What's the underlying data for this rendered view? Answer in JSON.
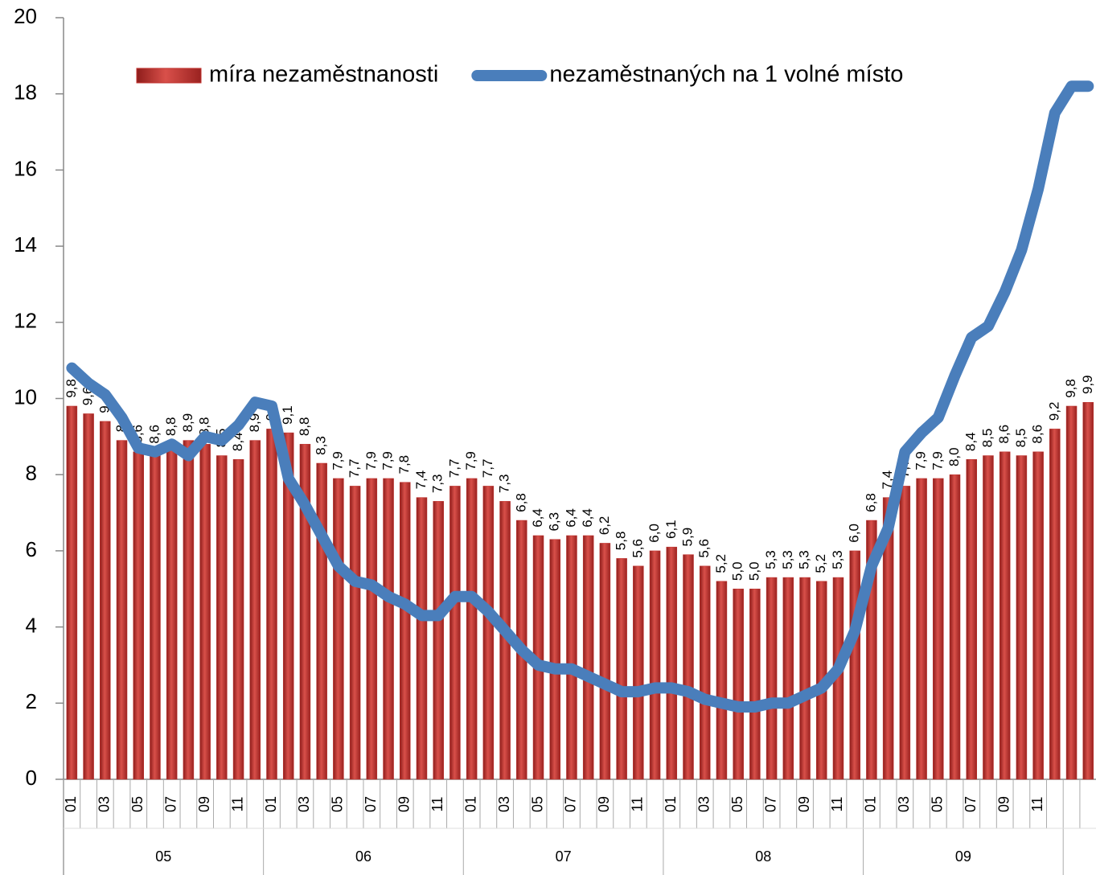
{
  "chart_data": {
    "type": "bar",
    "categories": [
      "01",
      null,
      "03",
      null,
      "05",
      null,
      "07",
      null,
      "09",
      null,
      "11",
      null,
      "01",
      null,
      "03",
      null,
      "05",
      null,
      "07",
      null,
      "09",
      null,
      "11",
      null,
      "01",
      null,
      "03",
      null,
      "05",
      null,
      "07",
      null,
      "09",
      null,
      "11",
      null,
      "01",
      null,
      "03",
      null,
      "05",
      null,
      "07",
      null,
      "09",
      null,
      "11",
      null,
      "01",
      null,
      "03",
      null,
      "05",
      null,
      "07",
      null,
      "09",
      null,
      "11",
      null,
      null,
      null
    ],
    "group_labels": [
      "05",
      "06",
      "07",
      "08",
      "09",
      null
    ],
    "series": [
      {
        "name": "míra nezaměstnanosti",
        "type": "bar",
        "color": "#c0302c",
        "values": [
          9.8,
          9.6,
          9.4,
          8.9,
          8.6,
          8.6,
          8.8,
          8.9,
          8.8,
          8.5,
          8.4,
          8.9,
          9.2,
          9.1,
          8.8,
          8.3,
          7.9,
          7.7,
          7.9,
          7.9,
          7.8,
          7.4,
          7.3,
          7.7,
          7.9,
          7.7,
          7.3,
          6.8,
          6.4,
          6.3,
          6.4,
          6.4,
          6.2,
          5.8,
          5.6,
          6.0,
          6.1,
          5.9,
          5.6,
          5.2,
          5.0,
          5.0,
          5.3,
          5.3,
          5.3,
          5.2,
          5.3,
          6.0,
          6.8,
          7.4,
          7.7,
          7.9,
          7.9,
          8.0,
          8.4,
          8.5,
          8.6,
          8.5,
          8.6,
          9.2,
          9.8,
          9.9
        ],
        "value_labels": [
          "9,8",
          "9,6",
          "9,4",
          "8,9",
          "8,6",
          "8,6",
          "8,8",
          "8,9",
          "8,8",
          "8,5",
          "8,4",
          "8,9",
          "9,2",
          "9,1",
          "8,8",
          "8,3",
          "7,9",
          "7,7",
          "7,9",
          "7,9",
          "7,8",
          "7,4",
          "7,3",
          "7,7",
          "7,9",
          "7,7",
          "7,3",
          "6,8",
          "6,4",
          "6,3",
          "6,4",
          "6,4",
          "6,2",
          "5,8",
          "5,6",
          "6,0",
          "6,1",
          "5,9",
          "5,6",
          "5,2",
          "5,0",
          "5,0",
          "5,3",
          "5,3",
          "5,3",
          "5,2",
          "5,3",
          "6,0",
          "6,8",
          "7,4",
          "7,7",
          "7,9",
          "7,9",
          "8,0",
          "8,4",
          "8,5",
          "8,6",
          "8,5",
          "8,6",
          "9,2",
          "9,8",
          "9,9"
        ]
      },
      {
        "name": "nezaměstnaných na 1 volné místo",
        "type": "line",
        "color": "#4a7ebb",
        "values": [
          10.8,
          10.4,
          10.1,
          9.5,
          8.7,
          8.6,
          8.8,
          8.5,
          9.0,
          8.9,
          9.3,
          9.9,
          9.8,
          7.9,
          7.2,
          6.4,
          5.6,
          5.2,
          5.1,
          4.8,
          4.6,
          4.3,
          4.3,
          4.8,
          4.8,
          4.4,
          3.9,
          3.4,
          3.0,
          2.9,
          2.9,
          2.7,
          2.5,
          2.3,
          2.3,
          2.4,
          2.4,
          2.3,
          2.1,
          2.0,
          1.9,
          1.9,
          2.0,
          2.0,
          2.2,
          2.4,
          2.9,
          3.9,
          5.6,
          6.6,
          8.6,
          9.1,
          9.5,
          10.6,
          11.6,
          11.9,
          12.8,
          13.9,
          15.5,
          17.5,
          18.2,
          18.2
        ]
      }
    ],
    "ylim": [
      0,
      20
    ],
    "yticks": [
      0,
      2,
      4,
      6,
      8,
      10,
      12,
      14,
      16,
      18,
      20
    ],
    "legend": "top"
  }
}
